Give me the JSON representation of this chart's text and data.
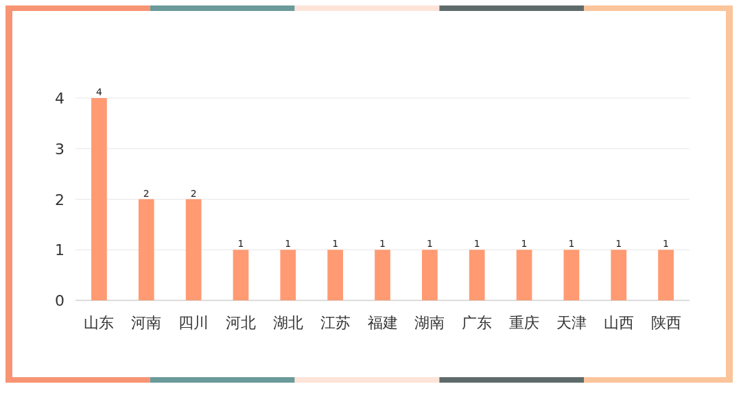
{
  "chart_data": {
    "type": "bar",
    "categories": [
      "山东",
      "河南",
      "四川",
      "河北",
      "湖北",
      "江苏",
      "福建",
      "湖南",
      "广东",
      "重庆",
      "天津",
      "山西",
      "陕西"
    ],
    "values": [
      4,
      2,
      2,
      1,
      1,
      1,
      1,
      1,
      1,
      1,
      1,
      1,
      1
    ],
    "color": "#ff9a72",
    "ylim": [
      0,
      4
    ],
    "yticks": [
      0,
      1,
      2,
      3,
      4
    ],
    "grid": "y",
    "data_labels": true
  }
}
